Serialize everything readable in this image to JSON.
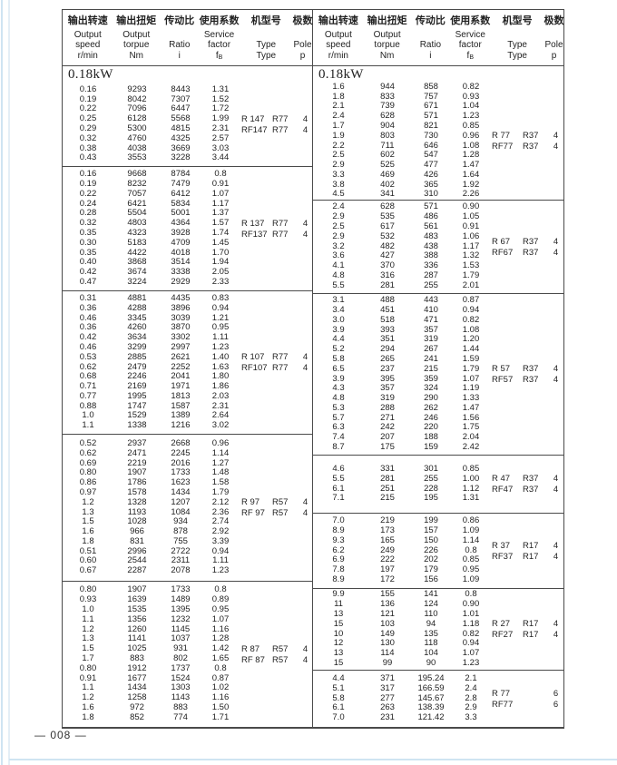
{
  "page": {
    "number": "— 008 —"
  },
  "colors": {
    "accent_line": "#cfe4f2",
    "accent_line_light": "#e4eef6",
    "border": "#4a4a4a",
    "text": "#222222"
  },
  "header": {
    "columns": [
      {
        "zh": "输出转速",
        "en": "Output speed",
        "unit": "r/min",
        "unit_sub": ""
      },
      {
        "zh": "输出扭矩",
        "en": "Output torpue",
        "unit": "Nm",
        "unit_sub": ""
      },
      {
        "zh": "传动比",
        "en": "Ratio",
        "unit": "i",
        "unit_sub": ""
      },
      {
        "zh": "使用系数",
        "en": "Service factor",
        "unit": "f",
        "unit_sub": "B"
      },
      {
        "zh": "机型号",
        "en": "Type",
        "unit": "Type",
        "unit_sub": ""
      },
      {
        "zh": "极数",
        "en": "Pole",
        "unit": "p",
        "unit_sub": ""
      }
    ]
  },
  "tables": [
    {
      "power": "0.18kW",
      "blocks": [
        {
          "height": 111,
          "rows": [
            [
              "0.16",
              "9293",
              "8443",
              "1.31"
            ],
            [
              "0.19",
              "8042",
              "7307",
              "1.52"
            ],
            [
              "0.22",
              "7096",
              "6447",
              "1.72"
            ],
            [
              "0.25",
              "6128",
              "5568",
              "1.99"
            ],
            [
              "0.29",
              "5300",
              "4815",
              "2.31"
            ],
            [
              "0.32",
              "4760",
              "4325",
              "2.57"
            ],
            [
              "0.38",
              "4038",
              "3669",
              "3.03"
            ],
            [
              "0.43",
              "3553",
              "3228",
              "3.44"
            ]
          ],
          "types": [
            {
              "a": "R 147",
              "b": "R77",
              "pole": "4"
            },
            {
              "a": "RF147",
              "b": "R77",
              "pole": "4"
            }
          ]
        },
        {
          "height": 137,
          "rows": [
            [
              "0.16",
              "9668",
              "8784",
              "0.8"
            ],
            [
              "0.19",
              "8232",
              "7479",
              "0.91"
            ],
            [
              "0.22",
              "7057",
              "6412",
              "1.07"
            ],
            [
              "0.24",
              "6421",
              "5834",
              "1.17"
            ],
            [
              "0.28",
              "5504",
              "5001",
              "1.37"
            ],
            [
              "0.32",
              "4803",
              "4364",
              "1.57"
            ],
            [
              "0.35",
              "4323",
              "3928",
              "1.74"
            ],
            [
              "0.30",
              "5183",
              "4709",
              "1.45"
            ],
            [
              "0.35",
              "4422",
              "4018",
              "1.70"
            ],
            [
              "0.40",
              "3868",
              "3514",
              "1.94"
            ],
            [
              "0.42",
              "3674",
              "3338",
              "2.05"
            ],
            [
              "0.47",
              "3224",
              "2929",
              "2.33"
            ]
          ],
          "types": [
            {
              "a": "R 137",
              "b": "R77",
              "pole": "4"
            },
            {
              "a": "RF137",
              "b": "R77",
              "pole": "4"
            }
          ]
        },
        {
          "height": 158,
          "rows": [
            [
              "0.31",
              "4881",
              "4435",
              "0.83"
            ],
            [
              "0.36",
              "4288",
              "3896",
              "0.94"
            ],
            [
              "0.46",
              "3345",
              "3039",
              "1.21"
            ],
            [
              "0.36",
              "4260",
              "3870",
              "0.95"
            ],
            [
              "0.42",
              "3634",
              "3302",
              "1.11"
            ],
            [
              "0.46",
              "3299",
              "2997",
              "1.23"
            ],
            [
              "0.53",
              "2885",
              "2621",
              "1.40"
            ],
            [
              "0.62",
              "2479",
              "2252",
              "1.63"
            ],
            [
              "0.68",
              "2246",
              "2041",
              "1.80"
            ],
            [
              "0.71",
              "2169",
              "1971",
              "1.86"
            ],
            [
              "0.77",
              "1995",
              "1813",
              "2.03"
            ],
            [
              "0.88",
              "1747",
              "1587",
              "2.31"
            ],
            [
              "1.0",
              "1529",
              "1389",
              "2.64"
            ],
            [
              "1.1",
              "1338",
              "1216",
              "3.02"
            ]
          ],
          "types": [
            {
              "a": "R 107",
              "b": "R77",
              "pole": "4"
            },
            {
              "a": "RF107",
              "b": "R77",
              "pole": "4"
            }
          ]
        },
        {
          "height": 162,
          "rows": [
            [
              "0.52",
              "2937",
              "2668",
              "0.96"
            ],
            [
              "0.62",
              "2471",
              "2245",
              "1.14"
            ],
            [
              "0.69",
              "2219",
              "2016",
              "1.27"
            ],
            [
              "0.80",
              "1907",
              "1733",
              "1.48"
            ],
            [
              "0.86",
              "1786",
              "1623",
              "1.58"
            ],
            [
              "0.97",
              "1578",
              "1434",
              "1.79"
            ],
            [
              "1.2",
              "1328",
              "1207",
              "2.12"
            ],
            [
              "1.3",
              "1193",
              "1084",
              "2.36"
            ],
            [
              "1.5",
              "1028",
              "934",
              "2.74"
            ],
            [
              "1.6",
              "966",
              "878",
              "2.92"
            ],
            [
              "1.8",
              "831",
              "755",
              "3.39"
            ],
            [
              "0.51",
              "2996",
              "2722",
              "0.94"
            ],
            [
              "0.60",
              "2544",
              "2311",
              "1.11"
            ],
            [
              "0.67",
              "2287",
              "2078",
              "1.23"
            ]
          ],
          "types": [
            {
              "a": "R 97",
              "b": "R57",
              "pole": "4"
            },
            {
              "a": "RF 97",
              "b": "R57",
              "pole": "4"
            }
          ]
        },
        {
          "height": 160,
          "rows": [
            [
              "0.80",
              "1907",
              "1733",
              "0.8"
            ],
            [
              "0.93",
              "1639",
              "1489",
              "0.89"
            ],
            [
              "1.0",
              "1535",
              "1395",
              "0.95"
            ],
            [
              "1.1",
              "1356",
              "1232",
              "1.07"
            ],
            [
              "1.2",
              "1260",
              "1145",
              "1.16"
            ],
            [
              "1.3",
              "1141",
              "1037",
              "1.28"
            ],
            [
              "1.5",
              "1025",
              "931",
              "1.42"
            ],
            [
              "1.7",
              "883",
              "802",
              "1.65"
            ],
            [
              "0.80",
              "1912",
              "1737",
              "0.8"
            ],
            [
              "0.91",
              "1677",
              "1524",
              "0.87"
            ],
            [
              "1.1",
              "1434",
              "1303",
              "1.02"
            ],
            [
              "1.2",
              "1258",
              "1143",
              "1.16"
            ],
            [
              "1.6",
              "972",
              "883",
              "1.50"
            ],
            [
              "1.8",
              "852",
              "774",
              "1.71"
            ]
          ],
          "types": [
            {
              "a": "R 87",
              "b": "R57",
              "pole": "4"
            },
            {
              "a": "RF 87",
              "b": "R57",
              "pole": "4"
            }
          ]
        }
      ]
    },
    {
      "power": "0.18kW",
      "blocks": [
        {
          "height": 148,
          "rows": [
            [
              "1.6",
              "944",
              "858",
              "0.82"
            ],
            [
              "1.8",
              "833",
              "757",
              "0.93"
            ],
            [
              "2.1",
              "739",
              "671",
              "1.04"
            ],
            [
              "2.4",
              "628",
              "571",
              "1.23"
            ],
            [
              "1.7",
              "904",
              "821",
              "0.85"
            ],
            [
              "1.9",
              "803",
              "730",
              "0.96"
            ],
            [
              "2.2",
              "711",
              "646",
              "1.08"
            ],
            [
              "2.5",
              "602",
              "547",
              "1.28"
            ],
            [
              "2.9",
              "525",
              "477",
              "1.47"
            ],
            [
              "3.3",
              "469",
              "426",
              "1.64"
            ],
            [
              "3.8",
              "402",
              "365",
              "1.92"
            ],
            [
              "4.5",
              "341",
              "310",
              "2.26"
            ]
          ],
          "types": [
            {
              "a": "R 77",
              "b": "R37",
              "pole": "4"
            },
            {
              "a": "RF77",
              "b": "R37",
              "pole": "4"
            }
          ]
        },
        {
          "height": 103,
          "rows": [
            [
              "2.4",
              "628",
              "571",
              "0.90"
            ],
            [
              "2.9",
              "535",
              "486",
              "1.05"
            ],
            [
              "2.5",
              "617",
              "561",
              "0.91"
            ],
            [
              "2.9",
              "532",
              "483",
              "1.06"
            ],
            [
              "3.2",
              "482",
              "438",
              "1.17"
            ],
            [
              "3.6",
              "427",
              "388",
              "1.32"
            ],
            [
              "4.1",
              "370",
              "336",
              "1.53"
            ],
            [
              "4.8",
              "316",
              "287",
              "1.79"
            ],
            [
              "5.5",
              "281",
              "255",
              "2.01"
            ]
          ],
          "types": [
            {
              "a": "R 67",
              "b": "R37",
              "pole": "4"
            },
            {
              "a": "RF67",
              "b": "R37",
              "pole": "4"
            }
          ]
        },
        {
          "height": 178,
          "rows": [
            [
              "3.1",
              "488",
              "443",
              "0.87"
            ],
            [
              "3.4",
              "451",
              "410",
              "0.94"
            ],
            [
              "3.0",
              "518",
              "471",
              "0.82"
            ],
            [
              "3.9",
              "393",
              "357",
              "1.08"
            ],
            [
              "4.4",
              "351",
              "319",
              "1.20"
            ],
            [
              "5.2",
              "294",
              "267",
              "1.44"
            ],
            [
              "5.8",
              "265",
              "241",
              "1.59"
            ],
            [
              "6.5",
              "237",
              "215",
              "1.79"
            ],
            [
              "3.9",
              "395",
              "359",
              "1.07"
            ],
            [
              "4.3",
              "357",
              "324",
              "1.19"
            ],
            [
              "4.8",
              "319",
              "290",
              "1.33"
            ],
            [
              "5.3",
              "288",
              "262",
              "1.47"
            ],
            [
              "5.7",
              "271",
              "246",
              "1.56"
            ],
            [
              "6.3",
              "242",
              "220",
              "1.75"
            ],
            [
              "7.4",
              "207",
              "188",
              "2.04"
            ],
            [
              "8.7",
              "175",
              "159",
              "2.42"
            ]
          ],
          "types": [
            {
              "a": "R 57",
              "b": "R37",
              "pole": "4"
            },
            {
              "a": "RF57",
              "b": "R37",
              "pole": "4"
            }
          ]
        },
        {
          "height": 64,
          "rows": [
            [
              "4.6",
              "331",
              "301",
              "0.85"
            ],
            [
              "5.5",
              "281",
              "255",
              "1.00"
            ],
            [
              "6.1",
              "251",
              "228",
              "1.12"
            ],
            [
              "7.1",
              "215",
              "195",
              "1.31"
            ]
          ],
          "types": [
            {
              "a": "R 47",
              "b": "R37",
              "pole": "4"
            },
            {
              "a": "RF47",
              "b": "R37",
              "pole": "4"
            }
          ]
        },
        {
          "height": 83,
          "rows": [
            [
              "7.0",
              "219",
              "199",
              "0.86"
            ],
            [
              "8.9",
              "173",
              "157",
              "1.09"
            ],
            [
              "9.3",
              "165",
              "150",
              "1.14"
            ],
            [
              "6.2",
              "249",
              "226",
              "0.8"
            ],
            [
              "6.9",
              "222",
              "202",
              "0.85"
            ],
            [
              "7.8",
              "197",
              "179",
              "0.95"
            ],
            [
              "8.9",
              "172",
              "156",
              "1.09"
            ]
          ],
          "types": [
            {
              "a": "R 37",
              "b": "R17",
              "pole": "4"
            },
            {
              "a": "RF37",
              "b": "R17",
              "pole": "4"
            }
          ]
        },
        {
          "height": 90,
          "rows": [
            [
              "9.9",
              "155",
              "141",
              "0.8"
            ],
            [
              "11",
              "136",
              "124",
              "0.90"
            ],
            [
              "13",
              "121",
              "110",
              "1.01"
            ],
            [
              "15",
              "103",
              "94",
              "1.18"
            ],
            [
              "10",
              "149",
              "135",
              "0.82"
            ],
            [
              "12",
              "130",
              "118",
              "0.94"
            ],
            [
              "13",
              "114",
              "104",
              "1.07"
            ],
            [
              "15",
              "99",
              "90",
              "1.23"
            ]
          ],
          "types": [
            {
              "a": "R 27",
              "b": "R17",
              "pole": "4"
            },
            {
              "a": "RF27",
              "b": "R17",
              "pole": "4"
            }
          ]
        },
        {
          "height": 62,
          "rows": [
            [
              "4.4",
              "371",
              "195.24",
              "2.1"
            ],
            [
              "5.1",
              "317",
              "166.59",
              "2.4"
            ],
            [
              "5.8",
              "277",
              "145.67",
              "2.8"
            ],
            [
              "6.1",
              "263",
              "138.39",
              "2.9"
            ],
            [
              "7.0",
              "231",
              "121.42",
              "3.3"
            ]
          ],
          "types": [
            {
              "a": "R 77",
              "b": "",
              "pole": "6"
            },
            {
              "a": "RF77",
              "b": "",
              "pole": "6"
            }
          ]
        }
      ]
    }
  ]
}
